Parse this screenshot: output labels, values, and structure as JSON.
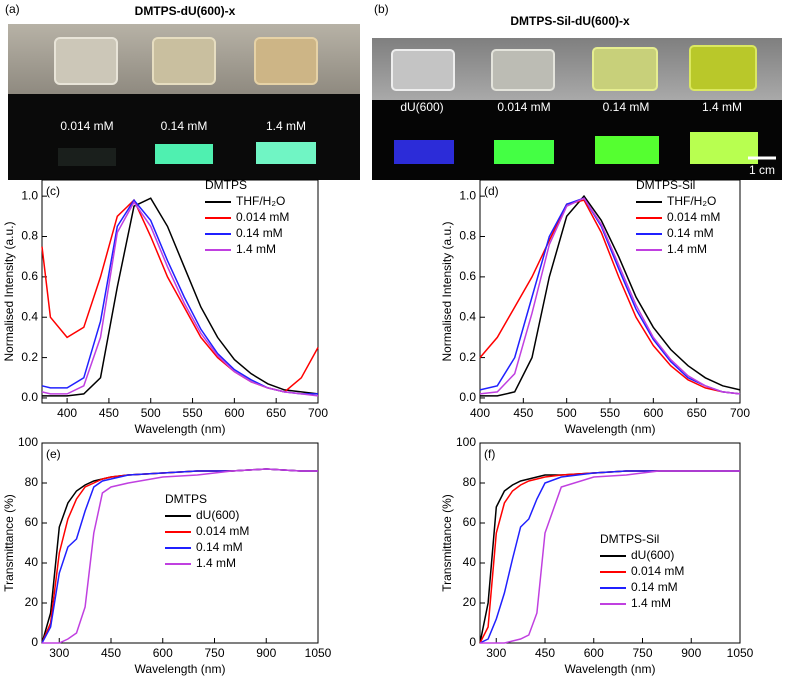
{
  "photos": [
    {
      "label": "(a)",
      "title": "DMTPS-dU(600)-x",
      "samples": [
        "0.014 mM",
        "0.14 mM",
        "1.4 mM"
      ]
    },
    {
      "label": "(b)",
      "title": "DMTPS-Sil-dU(600)-x",
      "samples": [
        "dU(600)",
        "0.014 mM",
        "0.14 mM",
        "1.4 mM"
      ],
      "scale_bar": "1 cm"
    }
  ],
  "chart_data": [
    {
      "type": "line",
      "panel_label": "(c)",
      "legend_title": "DMTPS",
      "xlabel": "Wavelength (nm)",
      "ylabel": "Normalised Intensity (a.u.)",
      "xlim": [
        370,
        700
      ],
      "ylim": [
        -0.025,
        1.08
      ],
      "xticks": [
        400,
        450,
        500,
        550,
        600,
        650,
        700
      ],
      "yticks": [
        {
          "value": 0,
          "label": "0.0"
        },
        0.2,
        0.4,
        0.6,
        0.8,
        {
          "value": 1,
          "label": "1.0"
        }
      ],
      "x": [
        370,
        380,
        400,
        420,
        440,
        460,
        480,
        500,
        520,
        540,
        560,
        580,
        600,
        620,
        640,
        660,
        680,
        700
      ],
      "series": [
        {
          "name": "THF/H₂O",
          "color": "#000000",
          "values": [
            0.01,
            0.01,
            0.01,
            0.02,
            0.1,
            0.55,
            0.95,
            0.99,
            0.85,
            0.65,
            0.45,
            0.3,
            0.19,
            0.12,
            0.07,
            0.04,
            0.03,
            0.02
          ]
        },
        {
          "name": "0.014 mM",
          "color": "#ff0000",
          "values": [
            0.75,
            0.4,
            0.3,
            0.35,
            0.6,
            0.9,
            0.98,
            0.8,
            0.6,
            0.45,
            0.3,
            0.2,
            0.13,
            0.08,
            0.05,
            0.03,
            0.1,
            0.25
          ]
        },
        {
          "name": "0.14 mM",
          "color": "#2020ff",
          "values": [
            0.06,
            0.05,
            0.05,
            0.1,
            0.38,
            0.85,
            0.98,
            0.88,
            0.68,
            0.5,
            0.34,
            0.22,
            0.14,
            0.09,
            0.05,
            0.03,
            0.02,
            0.02
          ]
        },
        {
          "name": "1.4 mM",
          "color": "#c040e0",
          "values": [
            0.03,
            0.02,
            0.02,
            0.06,
            0.3,
            0.82,
            0.97,
            0.85,
            0.65,
            0.47,
            0.32,
            0.21,
            0.13,
            0.08,
            0.05,
            0.03,
            0.02,
            0.01
          ]
        }
      ]
    },
    {
      "type": "line",
      "panel_label": "(d)",
      "legend_title": "DMTPS-Sil",
      "xlabel": "Wavelength (nm)",
      "ylabel": "Normalised Intensity (a.u.)",
      "xlim": [
        400,
        700
      ],
      "ylim": [
        -0.025,
        1.08
      ],
      "xticks": [
        400,
        450,
        500,
        550,
        600,
        650,
        700
      ],
      "yticks": [
        {
          "value": 0,
          "label": "0.0"
        },
        0.2,
        0.4,
        0.6,
        0.8,
        {
          "value": 1,
          "label": "1.0"
        }
      ],
      "x": [
        400,
        420,
        440,
        460,
        480,
        500,
        520,
        540,
        560,
        580,
        600,
        620,
        640,
        660,
        680,
        700
      ],
      "series": [
        {
          "name": "THF/H₂O",
          "color": "#000000",
          "values": [
            0.01,
            0.01,
            0.03,
            0.2,
            0.6,
            0.9,
            1.0,
            0.88,
            0.7,
            0.5,
            0.35,
            0.24,
            0.16,
            0.1,
            0.06,
            0.04
          ]
        },
        {
          "name": "0.014 mM",
          "color": "#ff0000",
          "values": [
            0.2,
            0.3,
            0.45,
            0.6,
            0.78,
            0.96,
            0.98,
            0.82,
            0.6,
            0.4,
            0.26,
            0.16,
            0.09,
            0.05,
            0.03,
            0.02
          ]
        },
        {
          "name": "0.14 mM",
          "color": "#2020ff",
          "values": [
            0.04,
            0.06,
            0.2,
            0.5,
            0.8,
            0.96,
            0.99,
            0.85,
            0.64,
            0.44,
            0.29,
            0.18,
            0.1,
            0.06,
            0.03,
            0.02
          ]
        },
        {
          "name": "1.4 mM",
          "color": "#c040e0",
          "values": [
            0.02,
            0.03,
            0.12,
            0.42,
            0.76,
            0.95,
            0.99,
            0.86,
            0.66,
            0.46,
            0.3,
            0.19,
            0.11,
            0.06,
            0.03,
            0.02
          ]
        }
      ]
    },
    {
      "type": "line",
      "panel_label": "(e)",
      "legend_title": "DMTPS",
      "xlabel": "Wavelength (nm)",
      "ylabel": "Transmittance (%)",
      "xlim": [
        250,
        1050
      ],
      "ylim": [
        0,
        100
      ],
      "xticks": [
        300,
        450,
        600,
        750,
        900,
        1050
      ],
      "yticks": [
        0,
        20,
        40,
        60,
        80,
        100
      ],
      "x": [
        250,
        275,
        300,
        325,
        350,
        375,
        400,
        425,
        450,
        500,
        600,
        700,
        800,
        900,
        1000,
        1050
      ],
      "series": [
        {
          "name": "dU(600)",
          "color": "#000000",
          "values": [
            0,
            15,
            58,
            70,
            76,
            79,
            81,
            82,
            83,
            84,
            85,
            86,
            86,
            87,
            86,
            86
          ]
        },
        {
          "name": "0.014 mM",
          "color": "#ff0000",
          "values": [
            0,
            10,
            45,
            62,
            72,
            78,
            80,
            82,
            83,
            84,
            85,
            86,
            86,
            87,
            86,
            86
          ]
        },
        {
          "name": "0.14 mM",
          "color": "#2020ff",
          "values": [
            0,
            8,
            35,
            48,
            52,
            66,
            78,
            81,
            82,
            84,
            85,
            86,
            86,
            87,
            86,
            86
          ]
        },
        {
          "name": "1.4 mM",
          "color": "#c040e0",
          "values": [
            0,
            0,
            0,
            2,
            5,
            18,
            55,
            75,
            78,
            80,
            83,
            84,
            86,
            87,
            86,
            86
          ]
        }
      ]
    },
    {
      "type": "line",
      "panel_label": "(f)",
      "legend_title": "DMTPS-Sil",
      "xlabel": "Wavelength (nm)",
      "ylabel": "Transmittance (%)",
      "xlim": [
        250,
        1050
      ],
      "ylim": [
        0,
        100
      ],
      "xticks": [
        300,
        450,
        600,
        750,
        900,
        1050
      ],
      "yticks": [
        0,
        20,
        40,
        60,
        80,
        100
      ],
      "x": [
        250,
        275,
        300,
        325,
        350,
        375,
        400,
        425,
        450,
        500,
        600,
        700,
        800,
        900,
        1000,
        1050
      ],
      "series": [
        {
          "name": "dU(600)",
          "color": "#000000",
          "values": [
            0,
            20,
            68,
            76,
            79,
            81,
            82,
            83,
            84,
            84,
            85,
            86,
            86,
            86,
            86,
            86
          ]
        },
        {
          "name": "0.014 mM",
          "color": "#ff0000",
          "values": [
            0,
            8,
            55,
            70,
            76,
            79,
            81,
            82,
            83,
            84,
            85,
            86,
            86,
            86,
            86,
            86
          ]
        },
        {
          "name": "0.14 mM",
          "color": "#2020ff",
          "values": [
            0,
            2,
            12,
            25,
            42,
            58,
            62,
            72,
            80,
            83,
            85,
            86,
            86,
            86,
            86,
            86
          ]
        },
        {
          "name": "1.4 mM",
          "color": "#c040e0",
          "values": [
            0,
            0,
            0,
            0,
            1,
            2,
            4,
            15,
            55,
            78,
            83,
            84,
            86,
            86,
            86,
            86
          ]
        }
      ]
    }
  ]
}
